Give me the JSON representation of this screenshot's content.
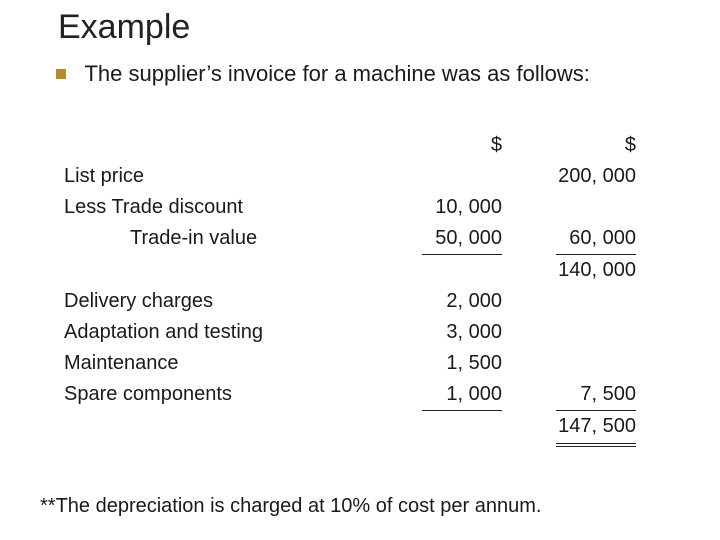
{
  "title": "Example",
  "bullet": "The supplier’s invoice for a machine was as follows:",
  "header": {
    "col1": "$",
    "col2": "$"
  },
  "rows": {
    "list_price": {
      "label": "List price",
      "col1": "",
      "col2": "200, 000"
    },
    "trade_discount": {
      "label": "Less Trade discount",
      "col1": "10, 000",
      "col2": ""
    },
    "trade_in": {
      "label": "Trade-in value",
      "col1": "50, 000",
      "col2": "60, 000"
    },
    "subtotal1": {
      "label": "",
      "col1": "",
      "col2": "140, 000"
    },
    "delivery": {
      "label": "Delivery charges",
      "col1": "2, 000",
      "col2": ""
    },
    "adaptation": {
      "label": "Adaptation and testing",
      "col1": "3, 000",
      "col2": ""
    },
    "maintenance": {
      "label": "Maintenance",
      "col1": "1, 500",
      "col2": ""
    },
    "spares": {
      "label": "Spare components",
      "col1": "1, 000",
      "col2": "7, 500"
    },
    "total": {
      "label": "",
      "col1": "",
      "col2": "147, 500"
    }
  },
  "footnote": "**The depreciation is charged at 10% of cost per annum.",
  "colors": {
    "bullet_square": "#ba8a2e",
    "text": "#1a1a1a",
    "background": "#ffffff"
  },
  "fonts": {
    "title_size_pt": 34,
    "body_size_pt": 22,
    "table_size_pt": 20
  }
}
